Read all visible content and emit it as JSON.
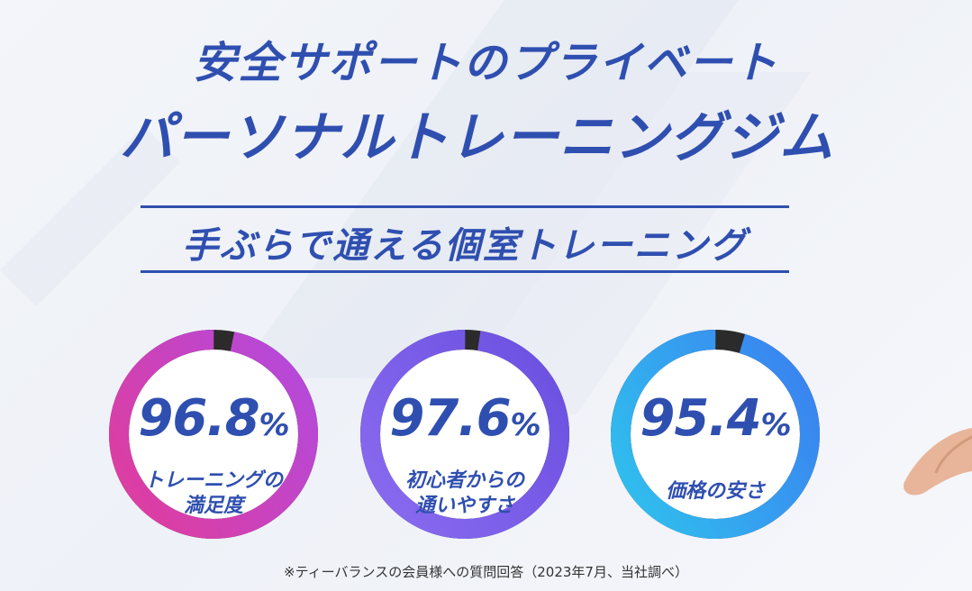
{
  "title": {
    "line1": "安全サポートのプライベート",
    "line2": "パーソナルトレーニングジム"
  },
  "subtitle": "手ぶらで通える個室トレーニング",
  "stats": [
    {
      "value": "96.8",
      "unit": "%",
      "percent": 96.8,
      "label_line1": "トレーニングの",
      "label_line2": "満足度",
      "color_start": "#e23c9a",
      "color_end": "#b14ae0"
    },
    {
      "value": "97.6",
      "unit": "%",
      "percent": 97.6,
      "label_line1": "初心者からの",
      "label_line2": "通いやすさ",
      "color_start": "#8a6cf0",
      "color_end": "#6a4fe0"
    },
    {
      "value": "95.4",
      "unit": "%",
      "percent": 95.4,
      "label_line1": "価格の安さ",
      "label_line2": "",
      "color_start": "#2fc4ee",
      "color_end": "#3b7df0"
    }
  ],
  "footnote": "※ティーバランスの会員様への質問回答（2023年7月、当社調べ）",
  "colors": {
    "brand": "#2f4fb0",
    "ring_gap": "#2b2b2b"
  }
}
